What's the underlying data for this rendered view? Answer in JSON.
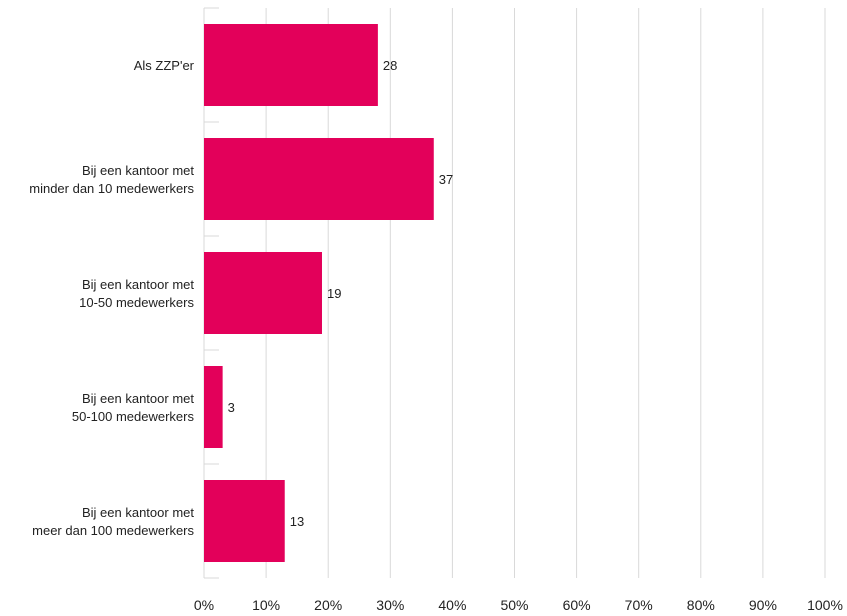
{
  "chart_data": {
    "type": "bar",
    "orientation": "horizontal",
    "categories": [
      [
        "Als ZZP'er"
      ],
      [
        "Bij een kantoor met",
        "minder dan 10 medewerkers"
      ],
      [
        "Bij een kantoor met",
        "10-50 medewerkers"
      ],
      [
        "Bij een kantoor met",
        "50-100 medewerkers"
      ],
      [
        "Bij een kantoor met",
        "meer dan 100 medewerkers"
      ]
    ],
    "values": [
      28,
      37,
      19,
      3,
      13
    ],
    "value_labels": [
      "28",
      "37",
      "19",
      "3",
      "13"
    ],
    "x_ticks": [
      0,
      10,
      20,
      30,
      40,
      50,
      60,
      70,
      80,
      90,
      100
    ],
    "x_tick_labels": [
      "0%",
      "10%",
      "20%",
      "30%",
      "40%",
      "50%",
      "60%",
      "70%",
      "80%",
      "90%",
      "100%"
    ],
    "xlim": [
      0,
      100
    ],
    "title": "",
    "xlabel": "",
    "ylabel": "",
    "grid": "vertical",
    "legend": "none",
    "colors": {
      "bar": "#e3005a",
      "grid": "#d9d9d9",
      "text": "#222222"
    }
  }
}
